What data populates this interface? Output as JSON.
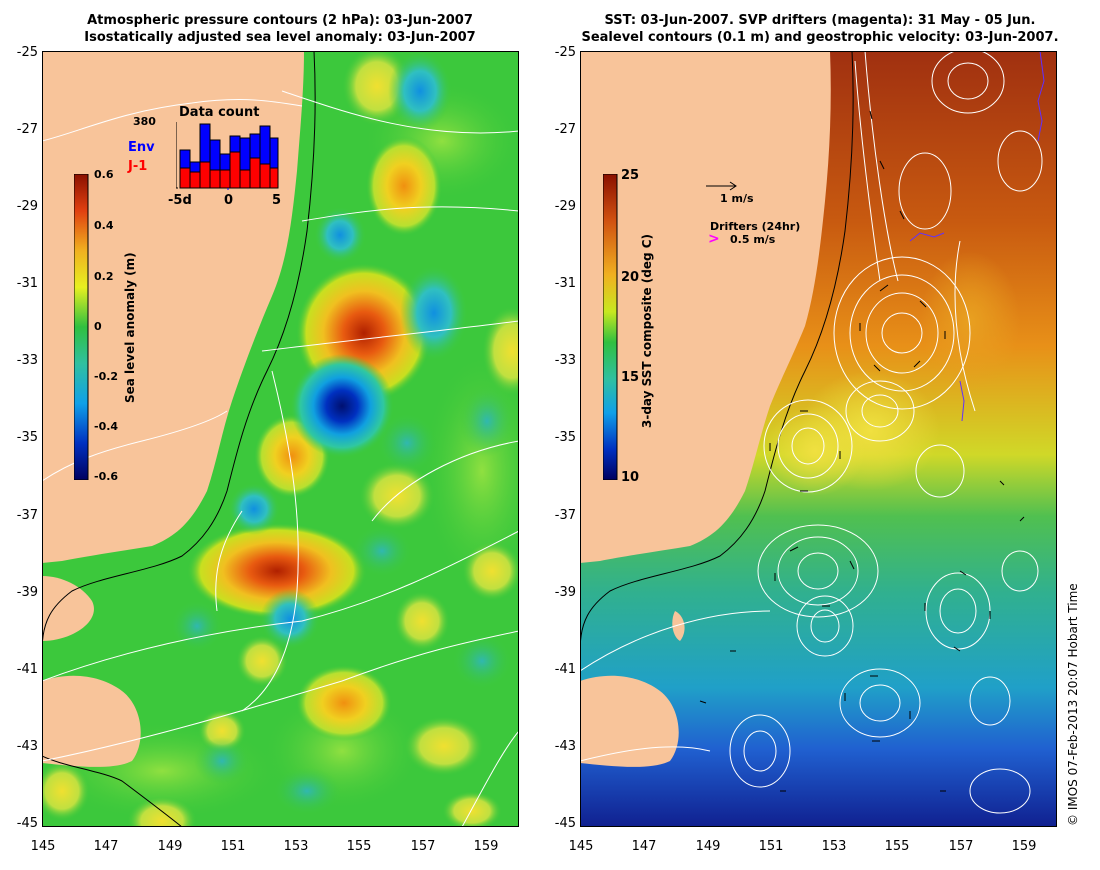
{
  "left_panel": {
    "title_line1": "Atmospheric pressure contours (2 hPa): 03-Jun-2007",
    "title_line2": "Isostatically adjusted sea level anomaly: 03-Jun-2007",
    "colorbar": {
      "label": "Sea level anomaly (m)",
      "ticks": [
        "0.6",
        "0.4",
        "0.2",
        "0",
        "-0.2",
        "-0.4",
        "-0.6"
      ]
    },
    "data_count": {
      "title": "Data count",
      "max_label": "380",
      "legend_env": "Env",
      "legend_j1": "J-1",
      "x_ticks": [
        "-5d",
        "0",
        "5"
      ],
      "env_color": "#0000ff",
      "j1_color": "#ff0000"
    }
  },
  "right_panel": {
    "title_line1": "SST: 03-Jun-2007. SVP drifters (magenta): 31 May - 05 Jun.",
    "title_line2": "Sealevel contours (0.1 m) and geostrophic velocity: 03-Jun-2007.",
    "colorbar": {
      "label": "3-day SST composite (deg C)",
      "ticks": [
        "25",
        "20",
        "15",
        "10"
      ]
    },
    "velocity_key": "1 m/s",
    "drifter_key_title": "Drifters (24hr)",
    "drifter_key_value": "0.5 m/s",
    "drifter_color": "#ff00ff"
  },
  "axes": {
    "y_ticks": [
      "-25",
      "-27",
      "-29",
      "-31",
      "-33",
      "-35",
      "-37",
      "-39",
      "-41",
      "-43",
      "-45"
    ],
    "x_ticks": [
      "145",
      "147",
      "149",
      "151",
      "153",
      "155",
      "157",
      "159"
    ],
    "lat_range": [
      -45,
      -25
    ],
    "lon_range": [
      145,
      160
    ]
  },
  "credit": "© IMOS 07-Feb-2013 20:07 Hobart Time",
  "colors": {
    "land": "#f8c49a",
    "ocean_base": "#3cc83c"
  }
}
